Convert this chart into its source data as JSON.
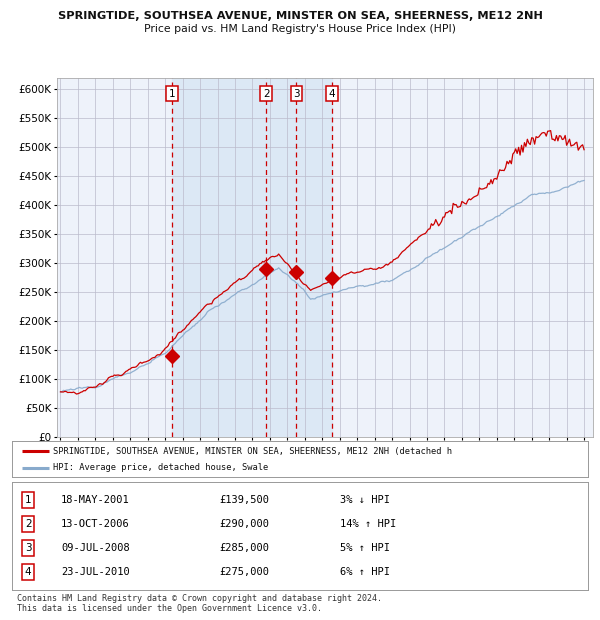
{
  "title1": "SPRINGTIDE, SOUTHSEA AVENUE, MINSTER ON SEA, SHEERNESS, ME12 2NH",
  "title2": "Price paid vs. HM Land Registry's House Price Index (HPI)",
  "background_color": "#ffffff",
  "plot_bg_color": "#eef2fa",
  "grid_color": "#bbbbcc",
  "line_color_red": "#cc0000",
  "line_color_blue": "#88aacc",
  "shade_color": "#dce8f5",
  "transactions": [
    {
      "label": "1",
      "date_num": 2001.38,
      "price": 139500,
      "pct": "3%",
      "dir": "↓",
      "date_str": "18-MAY-2001"
    },
    {
      "label": "2",
      "date_num": 2006.79,
      "price": 290000,
      "pct": "14%",
      "dir": "↑",
      "date_str": "13-OCT-2006"
    },
    {
      "label": "3",
      "date_num": 2008.52,
      "price": 285000,
      "pct": "5%",
      "dir": "↑",
      "date_str": "09-JUL-2008"
    },
    {
      "label": "4",
      "date_num": 2010.56,
      "price": 275000,
      "pct": "6%",
      "dir": "↑",
      "date_str": "23-JUL-2010"
    }
  ],
  "legend_line1": "SPRINGTIDE, SOUTHSEA AVENUE, MINSTER ON SEA, SHEERNESS, ME12 2NH (detached h",
  "legend_line2": "HPI: Average price, detached house, Swale",
  "footer1": "Contains HM Land Registry data © Crown copyright and database right 2024.",
  "footer2": "This data is licensed under the Open Government Licence v3.0.",
  "ylim": [
    0,
    620000
  ],
  "xlim_start": 1994.8,
  "xlim_end": 2025.5,
  "table_rows": [
    [
      "1",
      "18-MAY-2001",
      "£139,500",
      "3% ↓ HPI"
    ],
    [
      "2",
      "13-OCT-2006",
      "£290,000",
      "14% ↑ HPI"
    ],
    [
      "3",
      "09-JUL-2008",
      "£285,000",
      "5% ↑ HPI"
    ],
    [
      "4",
      "23-JUL-2010",
      "£275,000",
      "6% ↑ HPI"
    ]
  ]
}
